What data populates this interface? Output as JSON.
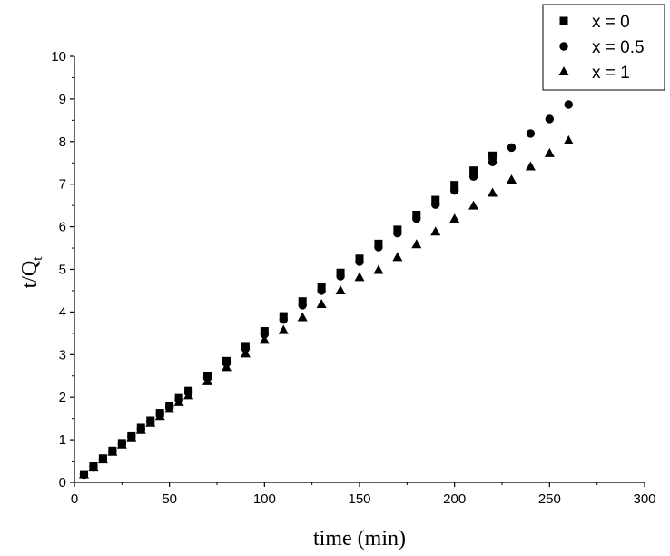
{
  "chart_data": {
    "type": "scatter",
    "title": "",
    "xlabel": "time (min)",
    "ylabel_main": "t/Q",
    "ylabel_sub": "t",
    "xlim": [
      0,
      300
    ],
    "ylim": [
      0,
      10
    ],
    "x_ticks": [
      "0",
      "50",
      "100",
      "150",
      "200",
      "250",
      "300"
    ],
    "y_ticks": [
      "0",
      "1",
      "2",
      "3",
      "4",
      "5",
      "6",
      "7",
      "8",
      "9",
      "10"
    ],
    "grid": false,
    "legend_position": "top-right",
    "series": [
      {
        "name": "x = 0",
        "marker": "square",
        "points": [
          [
            5,
            0.19
          ],
          [
            10,
            0.38
          ],
          [
            15,
            0.56
          ],
          [
            20,
            0.74
          ],
          [
            25,
            0.92
          ],
          [
            30,
            1.1
          ],
          [
            35,
            1.28
          ],
          [
            40,
            1.45
          ],
          [
            45,
            1.63
          ],
          [
            50,
            1.8
          ],
          [
            55,
            1.98
          ],
          [
            60,
            2.15
          ],
          [
            70,
            2.5
          ],
          [
            80,
            2.85
          ],
          [
            90,
            3.2
          ],
          [
            100,
            3.55
          ],
          [
            110,
            3.9
          ],
          [
            120,
            4.25
          ],
          [
            130,
            4.58
          ],
          [
            140,
            4.92
          ],
          [
            150,
            5.25
          ],
          [
            160,
            5.6
          ],
          [
            170,
            5.93
          ],
          [
            180,
            6.28
          ],
          [
            190,
            6.63
          ],
          [
            200,
            6.98
          ],
          [
            210,
            7.32
          ],
          [
            220,
            7.67
          ]
        ]
      },
      {
        "name": "x = 0.5",
        "marker": "circle",
        "points": [
          [
            5,
            0.18
          ],
          [
            10,
            0.37
          ],
          [
            15,
            0.55
          ],
          [
            20,
            0.73
          ],
          [
            25,
            0.9
          ],
          [
            30,
            1.08
          ],
          [
            35,
            1.26
          ],
          [
            40,
            1.43
          ],
          [
            45,
            1.6
          ],
          [
            50,
            1.78
          ],
          [
            55,
            1.95
          ],
          [
            60,
            2.12
          ],
          [
            70,
            2.46
          ],
          [
            80,
            2.8
          ],
          [
            90,
            3.14
          ],
          [
            100,
            3.48
          ],
          [
            110,
            3.82
          ],
          [
            120,
            4.16
          ],
          [
            130,
            4.5
          ],
          [
            140,
            4.84
          ],
          [
            150,
            5.18
          ],
          [
            160,
            5.52
          ],
          [
            170,
            5.85
          ],
          [
            180,
            6.19
          ],
          [
            190,
            6.52
          ],
          [
            200,
            6.85
          ],
          [
            210,
            7.18
          ],
          [
            220,
            7.52
          ],
          [
            230,
            7.86
          ],
          [
            240,
            8.19
          ],
          [
            250,
            8.53
          ],
          [
            260,
            8.87
          ]
        ]
      },
      {
        "name": "x = 1",
        "marker": "triangle",
        "points": [
          [
            5,
            0.18
          ],
          [
            10,
            0.36
          ],
          [
            15,
            0.53
          ],
          [
            20,
            0.71
          ],
          [
            25,
            0.88
          ],
          [
            30,
            1.05
          ],
          [
            35,
            1.22
          ],
          [
            40,
            1.39
          ],
          [
            45,
            1.55
          ],
          [
            50,
            1.72
          ],
          [
            55,
            1.88
          ],
          [
            60,
            2.04
          ],
          [
            70,
            2.37
          ],
          [
            80,
            2.7
          ],
          [
            90,
            3.02
          ],
          [
            100,
            3.34
          ],
          [
            110,
            3.57
          ],
          [
            120,
            3.87
          ],
          [
            130,
            4.18
          ],
          [
            140,
            4.5
          ],
          [
            150,
            4.81
          ],
          [
            160,
            4.98
          ],
          [
            170,
            5.28
          ],
          [
            180,
            5.58
          ],
          [
            190,
            5.88
          ],
          [
            200,
            6.18
          ],
          [
            210,
            6.49
          ],
          [
            220,
            6.79
          ],
          [
            230,
            7.1
          ],
          [
            240,
            7.41
          ],
          [
            250,
            7.72
          ],
          [
            260,
            8.02
          ]
        ]
      }
    ]
  }
}
